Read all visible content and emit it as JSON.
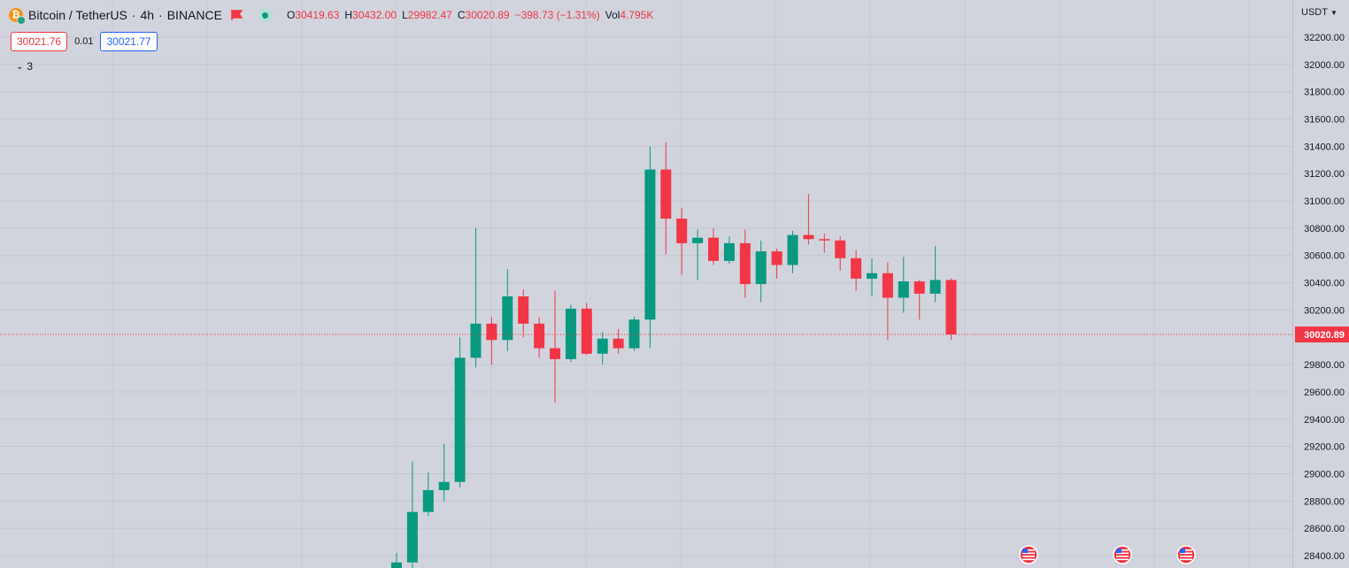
{
  "header": {
    "symbol": "Bitcoin / TetherUS",
    "interval": "4h",
    "exchange": "BINANCE",
    "separator": "·",
    "ohlc": [
      {
        "key": "O",
        "value": "30419.63"
      },
      {
        "key": "H",
        "value": "30432.00"
      },
      {
        "key": "L",
        "value": "29982.47"
      },
      {
        "key": "C",
        "value": "30020.89"
      },
      {
        "key": "",
        "value": "−398.73 (−1.31%)"
      },
      {
        "key": "Vol",
        "value": "4.795K"
      }
    ]
  },
  "trade": {
    "bid": "30021.76",
    "spread": "0.01",
    "ask": "30021.77"
  },
  "indicators": {
    "collapsed_count": "3"
  },
  "price_scale": {
    "currency": "USDT"
  },
  "colors": {
    "up": "#089981",
    "down": "#f23645",
    "grid": "#c3c7d0",
    "last_price": "#f23645"
  },
  "chart_data": {
    "type": "candlestick",
    "symbol": "BTCUSDT",
    "ylim": [
      28400,
      32200
    ],
    "y_ticks": [
      32200,
      32000,
      31800,
      31600,
      31400,
      31200,
      31000,
      30800,
      30600,
      30400,
      30200,
      29800,
      29600,
      29400,
      29200,
      29000,
      28800,
      28600,
      28400
    ],
    "y_tick_labels": [
      "32200.00",
      "32000.00",
      "31800.00",
      "31600.00",
      "31400.00",
      "31200.00",
      "31000.00",
      "30800.00",
      "30600.00",
      "30400.00",
      "30200.00",
      "29800.00",
      "29600.00",
      "29400.00",
      "29200.00",
      "29000.00",
      "28800.00",
      "28600.00",
      "28400.00"
    ],
    "last_price": 30020.89,
    "last_price_label": "30020.89",
    "candles": [
      {
        "o": 28200,
        "h": 28420,
        "l": 28150,
        "c": 28350
      },
      {
        "o": 28350,
        "h": 29090,
        "l": 28300,
        "c": 28720
      },
      {
        "o": 28720,
        "h": 29010,
        "l": 28690,
        "c": 28880
      },
      {
        "o": 28880,
        "h": 29220,
        "l": 28800,
        "c": 28940
      },
      {
        "o": 28940,
        "h": 30000,
        "l": 28900,
        "c": 29850
      },
      {
        "o": 29850,
        "h": 30800,
        "l": 29780,
        "c": 30100
      },
      {
        "o": 30100,
        "h": 30150,
        "l": 29800,
        "c": 29980
      },
      {
        "o": 29980,
        "h": 30500,
        "l": 29900,
        "c": 30300
      },
      {
        "o": 30300,
        "h": 30350,
        "l": 30000,
        "c": 30100
      },
      {
        "o": 30100,
        "h": 30150,
        "l": 29850,
        "c": 29920
      },
      {
        "o": 29920,
        "h": 30340,
        "l": 29520,
        "c": 29840
      },
      {
        "o": 29840,
        "h": 30240,
        "l": 29820,
        "c": 30210
      },
      {
        "o": 30210,
        "h": 30250,
        "l": 29870,
        "c": 29880
      },
      {
        "o": 29880,
        "h": 30040,
        "l": 29800,
        "c": 29990
      },
      {
        "o": 29990,
        "h": 30060,
        "l": 29880,
        "c": 29920
      },
      {
        "o": 29920,
        "h": 30150,
        "l": 29900,
        "c": 30130
      },
      {
        "o": 30130,
        "h": 31400,
        "l": 29920,
        "c": 31230
      },
      {
        "o": 31230,
        "h": 31430,
        "l": 30610,
        "c": 30870
      },
      {
        "o": 30870,
        "h": 30950,
        "l": 30460,
        "c": 30690
      },
      {
        "o": 30690,
        "h": 30790,
        "l": 30420,
        "c": 30730
      },
      {
        "o": 30730,
        "h": 30800,
        "l": 30530,
        "c": 30560
      },
      {
        "o": 30560,
        "h": 30740,
        "l": 30540,
        "c": 30690
      },
      {
        "o": 30690,
        "h": 30790,
        "l": 30290,
        "c": 30390
      },
      {
        "o": 30390,
        "h": 30710,
        "l": 30260,
        "c": 30630
      },
      {
        "o": 30630,
        "h": 30650,
        "l": 30430,
        "c": 30530
      },
      {
        "o": 30530,
        "h": 30780,
        "l": 30470,
        "c": 30750
      },
      {
        "o": 30750,
        "h": 31050,
        "l": 30680,
        "c": 30720
      },
      {
        "o": 30720,
        "h": 30760,
        "l": 30620,
        "c": 30710
      },
      {
        "o": 30710,
        "h": 30740,
        "l": 30490,
        "c": 30580
      },
      {
        "o": 30580,
        "h": 30640,
        "l": 30340,
        "c": 30430
      },
      {
        "o": 30430,
        "h": 30580,
        "l": 30300,
        "c": 30470
      },
      {
        "o": 30470,
        "h": 30550,
        "l": 29980,
        "c": 30290
      },
      {
        "o": 30290,
        "h": 30590,
        "l": 30180,
        "c": 30410
      },
      {
        "o": 30410,
        "h": 30420,
        "l": 30130,
        "c": 30320
      },
      {
        "o": 30320,
        "h": 30670,
        "l": 30260,
        "c": 30420
      },
      {
        "o": 30420,
        "h": 30432,
        "l": 29982,
        "c": 30021
      }
    ],
    "events_count": 3
  }
}
